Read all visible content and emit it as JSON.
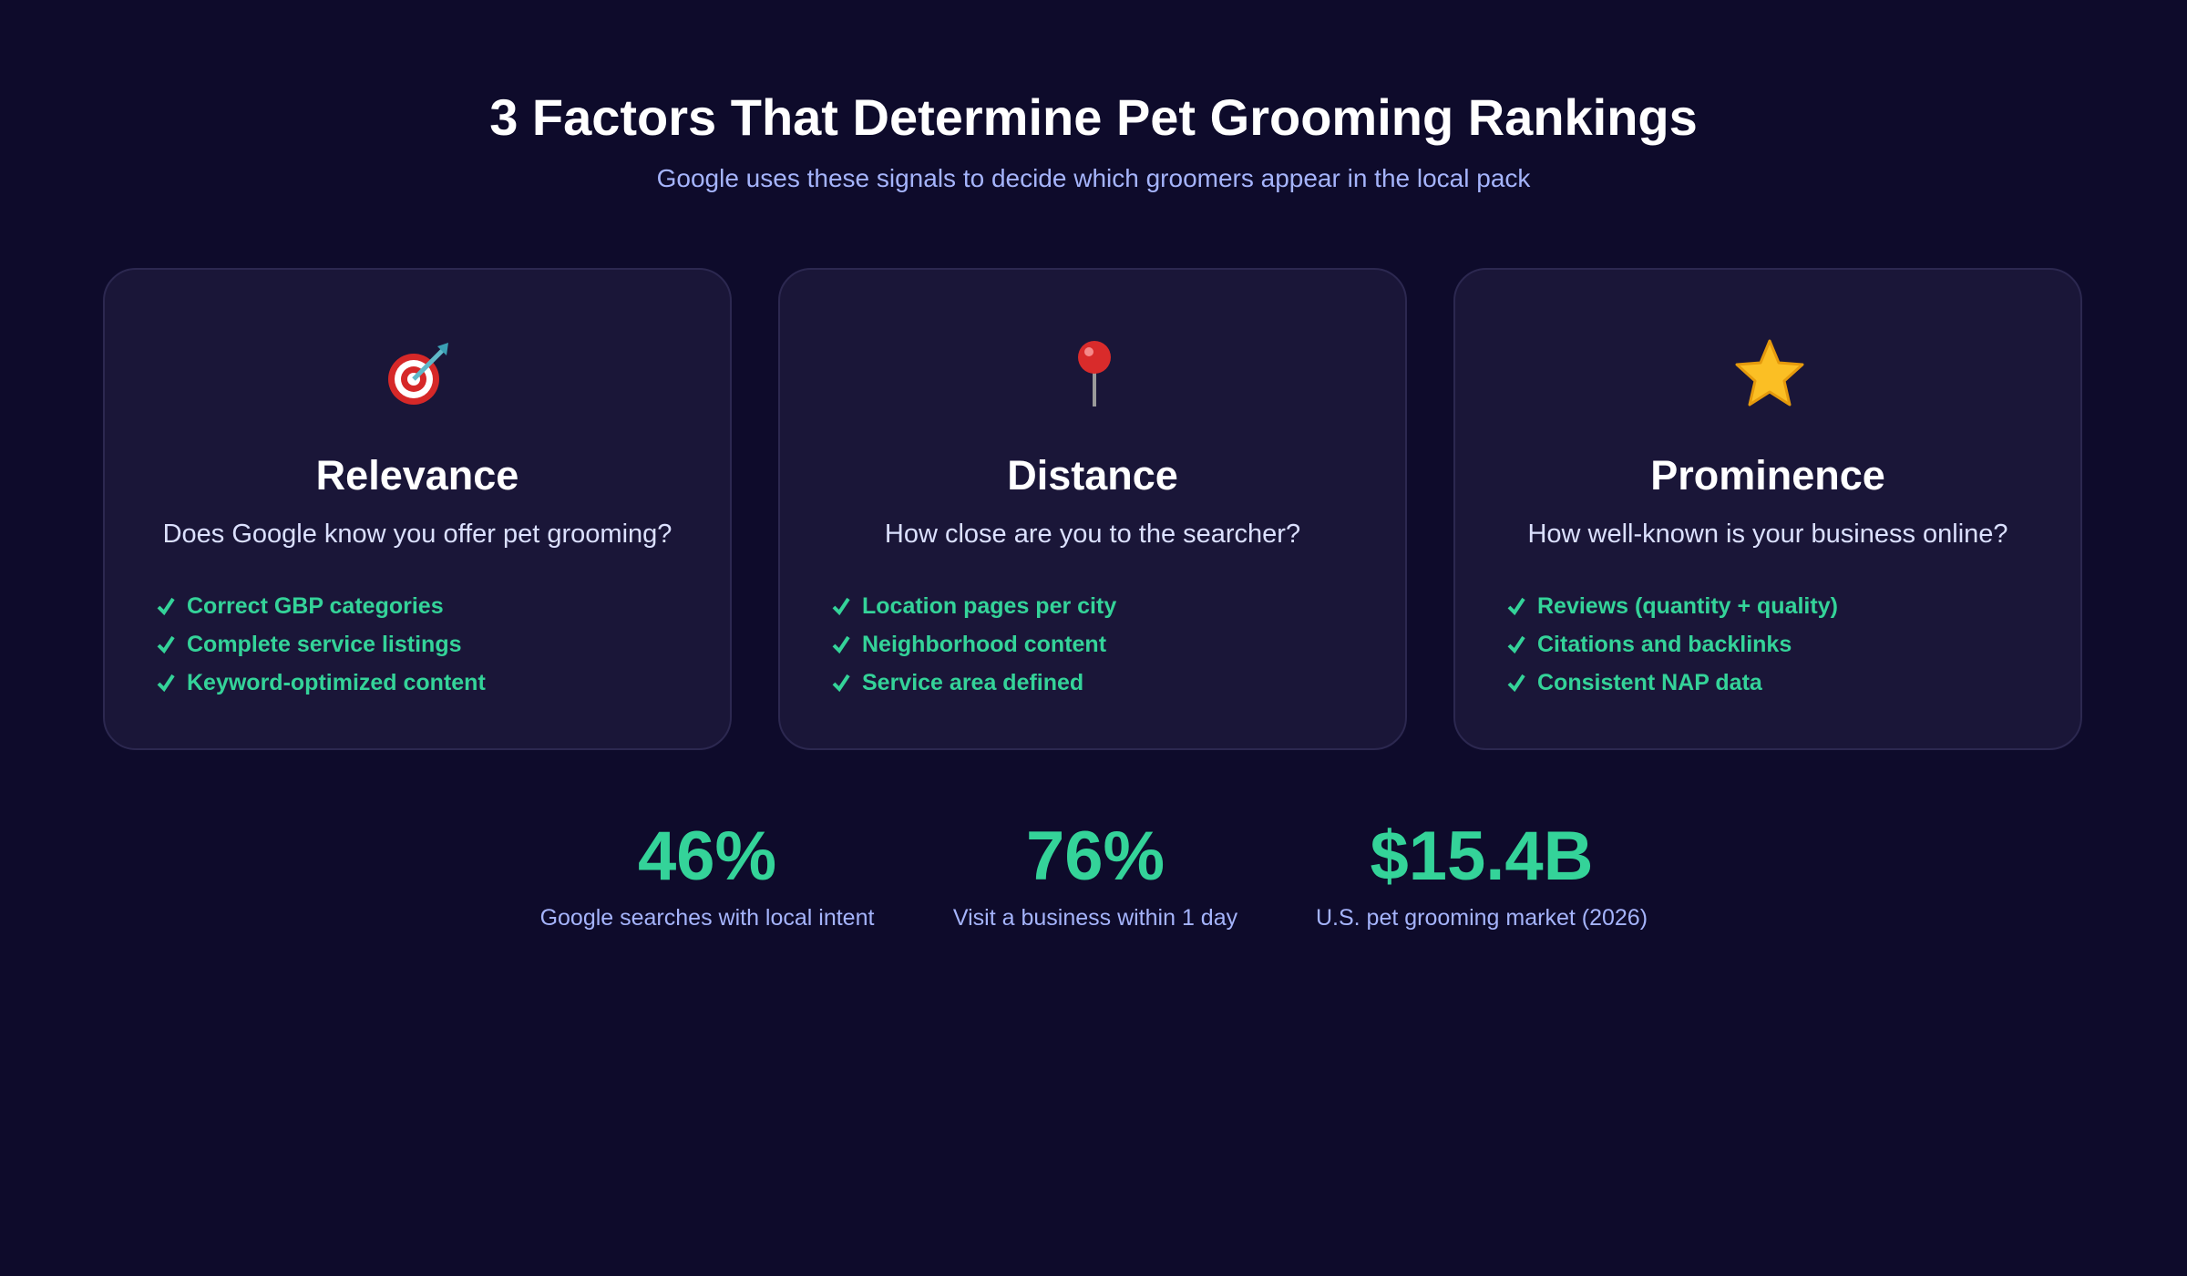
{
  "header": {
    "title": "3 Factors That Determine Pet Grooming Rankings",
    "subtitle": "Google uses these signals to decide which groomers appear in the local pack"
  },
  "cards": [
    {
      "title": "Relevance",
      "question": "Does Google know you offer pet grooming?",
      "items": [
        "Correct GBP categories",
        "Complete service listings",
        "Keyword-optimized content"
      ]
    },
    {
      "title": "Distance",
      "question": "How close are you to the searcher?",
      "items": [
        "Location pages per city",
        "Neighborhood content",
        "Service area defined"
      ]
    },
    {
      "title": "Prominence",
      "question": "How well-known is your business online?",
      "items": [
        "Reviews (quantity + quality)",
        "Citations and backlinks",
        "Consistent NAP data"
      ]
    }
  ],
  "stats": [
    {
      "value": "46%",
      "label": "Google searches with local intent"
    },
    {
      "value": "76%",
      "label": "Visit a business within 1 day"
    },
    {
      "value": "$15.4B",
      "label": "U.S. pet grooming market (2026)"
    }
  ]
}
